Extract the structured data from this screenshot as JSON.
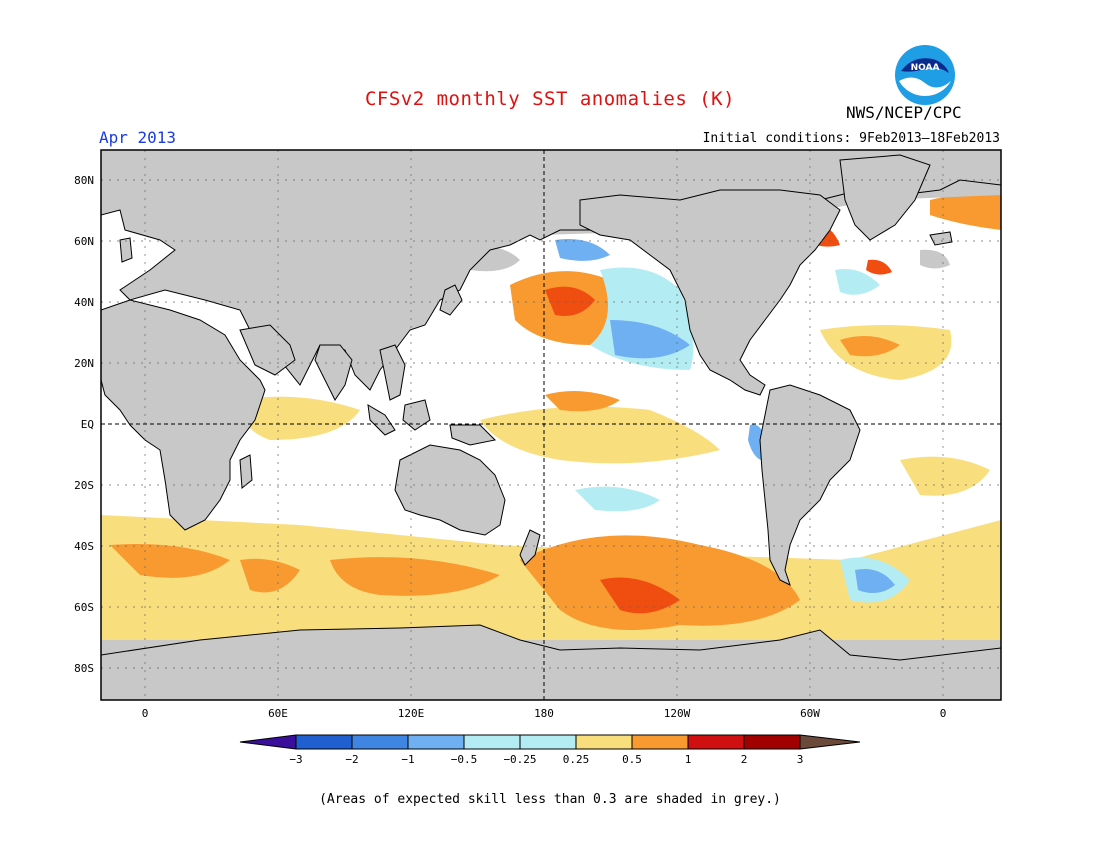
{
  "header": {
    "title": "CFSv2 monthly SST anomalies (K)",
    "month": "Apr 2013",
    "agency": "NWS/NCEP/CPC",
    "initial_conditions": "Initial conditions: 9Feb2013–18Feb2013",
    "logo_text": "NOAA"
  },
  "map": {
    "lat_labels": [
      "80N",
      "60N",
      "40N",
      "20N",
      "EQ",
      "20S",
      "40S",
      "60S",
      "80S"
    ],
    "lon_labels": [
      "0",
      "60E",
      "120E",
      "180",
      "120W",
      "60W",
      "0"
    ]
  },
  "legend": {
    "tick_labels": [
      "−3",
      "−2",
      "−1",
      "−0.5",
      "−0.25",
      "0.25",
      "0.5",
      "1",
      "2",
      "3"
    ],
    "colors": [
      "#3a0f9c",
      "#1f5fd0",
      "#3f86e2",
      "#6fb0f2",
      "#b4ecf4",
      "#ffffff",
      "#f9de7e",
      "#f99a30",
      "#f04e10",
      "#d01010",
      "#a00000",
      "#6b4a3a"
    ]
  },
  "footnote": "(Areas of expected skill less than 0.3 are shaded in grey.)",
  "colors": {
    "title": "#e01010",
    "month": "#1a3ce0",
    "land": "#c8c8c8",
    "skill_grey": "#c8c8c8",
    "ocean_neutral": "#ffffff"
  }
}
